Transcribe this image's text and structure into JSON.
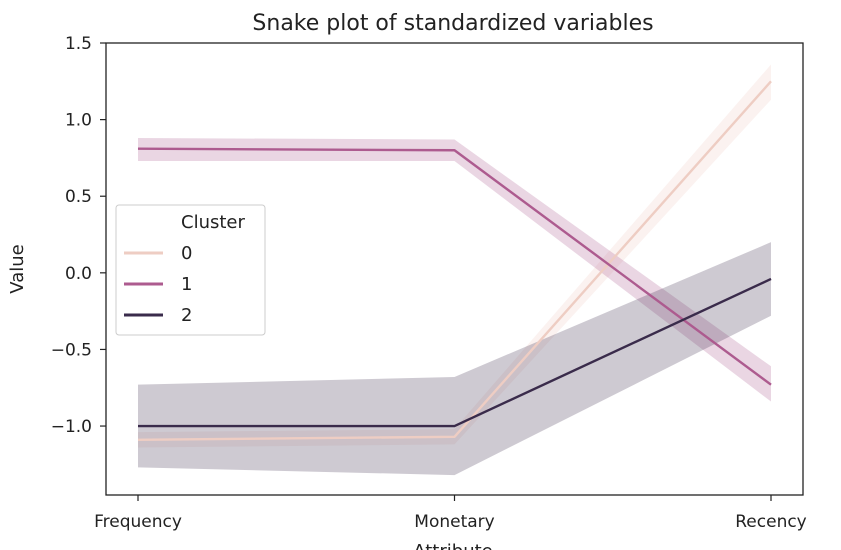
{
  "chart_data": {
    "type": "line",
    "title": "Snake plot of standardized variables",
    "xlabel": "Attribute",
    "ylabel": "Value",
    "categories": [
      "Frequency",
      "Monetary",
      "Recency"
    ],
    "ylim": [
      -1.45,
      1.5
    ],
    "yticks": [
      1.5,
      1.0,
      0.5,
      0.0,
      -0.5,
      -1.0
    ],
    "ytick_labels": [
      "1.5",
      "1.0",
      "0.5",
      "0.0",
      "−0.5",
      "−1.0"
    ],
    "grid": false,
    "legend": {
      "title": "Cluster",
      "position": "center-left"
    },
    "series": [
      {
        "name": "0",
        "color": "#eecdc3",
        "values": [
          -1.09,
          -1.07,
          1.25
        ],
        "ci_low": [
          -1.14,
          -1.12,
          1.13
        ],
        "ci_high": [
          -1.04,
          -1.02,
          1.36
        ]
      },
      {
        "name": "1",
        "color": "#ad5b8f",
        "values": [
          0.81,
          0.8,
          -0.73
        ],
        "ci_low": [
          0.73,
          0.73,
          -0.84
        ],
        "ci_high": [
          0.88,
          0.87,
          -0.61
        ]
      },
      {
        "name": "2",
        "color": "#3a2b4b",
        "values": [
          -1.0,
          -1.0,
          -0.04
        ],
        "ci_low": [
          -1.27,
          -1.32,
          -0.28
        ],
        "ci_high": [
          -0.73,
          -0.68,
          0.2
        ]
      }
    ]
  }
}
